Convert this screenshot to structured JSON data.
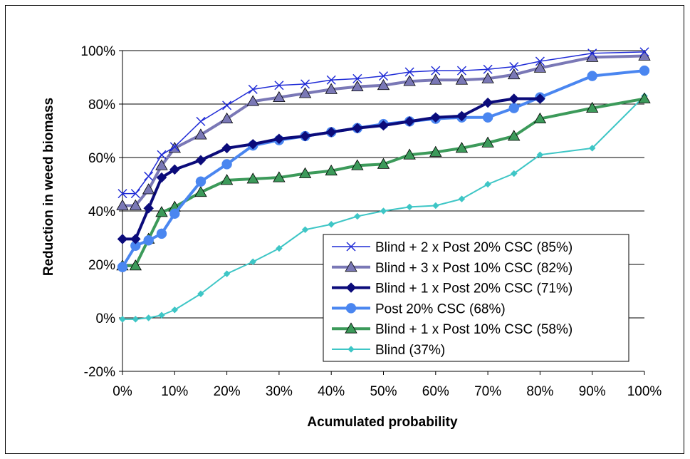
{
  "chart_data": {
    "type": "line",
    "title": "",
    "xlabel": "Acumulated probability",
    "ylabel": "Reduction in weed biomass",
    "xlim": [
      0,
      100
    ],
    "ylim": [
      -20,
      100
    ],
    "x_ticks": [
      "0%",
      "10%",
      "20%",
      "30%",
      "40%",
      "50%",
      "60%",
      "70%",
      "80%",
      "90%",
      "100%"
    ],
    "y_ticks": [
      "100%",
      "80%",
      "60%",
      "40%",
      "20%",
      "0%",
      "-20%"
    ],
    "grid": "horizontal",
    "legend_position": "lower-right",
    "series": [
      {
        "name": "Blind + 2 x Post 20% CSC (85%)",
        "color": "#1f2bd6",
        "marker": "x",
        "x": [
          0,
          2.5,
          5,
          7.5,
          10,
          15,
          20,
          25,
          30,
          35,
          40,
          45,
          50,
          55,
          60,
          65,
          70,
          75,
          80,
          90,
          100
        ],
        "y": [
          46.5,
          46.5,
          53,
          61,
          64,
          73.5,
          79.5,
          85.5,
          87,
          87.5,
          89,
          89.5,
          90.5,
          92,
          92.5,
          92.5,
          93,
          94,
          96,
          99,
          99.5
        ]
      },
      {
        "name": "Blind + 3 x Post 10% CSC (82%)",
        "color": "#7a78b6",
        "marker": "triangle",
        "x": [
          0,
          2.5,
          5,
          7.5,
          10,
          15,
          20,
          25,
          30,
          35,
          40,
          45,
          50,
          55,
          60,
          65,
          70,
          75,
          80,
          90,
          100
        ],
        "y": [
          42,
          42,
          48,
          57,
          63.5,
          68.5,
          74.5,
          81,
          82.5,
          84,
          85.5,
          86.5,
          87,
          88.5,
          89,
          89,
          89.5,
          91,
          93.5,
          97.5,
          98
        ]
      },
      {
        "name": "Blind + 1 x Post 20% CSC (71%)",
        "color": "#0b0b7a",
        "marker": "diamond",
        "x": [
          0,
          2.5,
          5,
          7.5,
          10,
          15,
          20,
          25,
          30,
          35,
          40,
          45,
          50,
          55,
          60,
          65,
          70,
          75,
          80
        ],
        "y": [
          29.5,
          29.5,
          41,
          52.5,
          55.5,
          59,
          63.5,
          65,
          67,
          68,
          69.5,
          71,
          72,
          73.5,
          75,
          75.5,
          80.5,
          82,
          82
        ]
      },
      {
        "name": "Post 20% CSC (68%)",
        "color": "#4a86f0",
        "marker": "circle",
        "x": [
          0,
          2.5,
          5,
          7.5,
          10,
          15,
          20,
          25,
          30,
          35,
          40,
          45,
          50,
          55,
          60,
          65,
          70,
          75,
          80,
          90,
          100
        ],
        "y": [
          19,
          27,
          29,
          31.5,
          39,
          51,
          57.5,
          64.5,
          66.5,
          68,
          69.5,
          71,
          72.5,
          73.5,
          74.5,
          75,
          75,
          78.5,
          82.5,
          90.5,
          92.5
        ]
      },
      {
        "name": "Blind + 1 x Post 10% CSC (58%)",
        "color": "#3c9a5a",
        "marker": "triangle",
        "x": [
          0,
          2.5,
          5,
          7.5,
          10,
          15,
          20,
          25,
          30,
          35,
          40,
          45,
          50,
          55,
          60,
          65,
          70,
          75,
          80,
          90,
          100
        ],
        "y": [
          19.5,
          19.5,
          29.5,
          39.5,
          41.5,
          47,
          51.5,
          52,
          52.5,
          54,
          55,
          57,
          57.5,
          61,
          62,
          63.5,
          65.5,
          68,
          74.5,
          78.5,
          82
        ]
      },
      {
        "name": "Blind (37%)",
        "color": "#3ec6c6",
        "marker": "small-diamond",
        "x": [
          0,
          2.5,
          5,
          7.5,
          10,
          15,
          20,
          25,
          30,
          35,
          40,
          45,
          50,
          55,
          60,
          65,
          70,
          75,
          80,
          90,
          100
        ],
        "y": [
          -0.5,
          -0.5,
          0,
          1,
          3,
          9,
          16.5,
          21,
          26,
          33,
          35,
          38,
          40,
          41.5,
          42,
          44.5,
          50,
          54,
          61,
          63.5,
          83
        ]
      }
    ]
  }
}
